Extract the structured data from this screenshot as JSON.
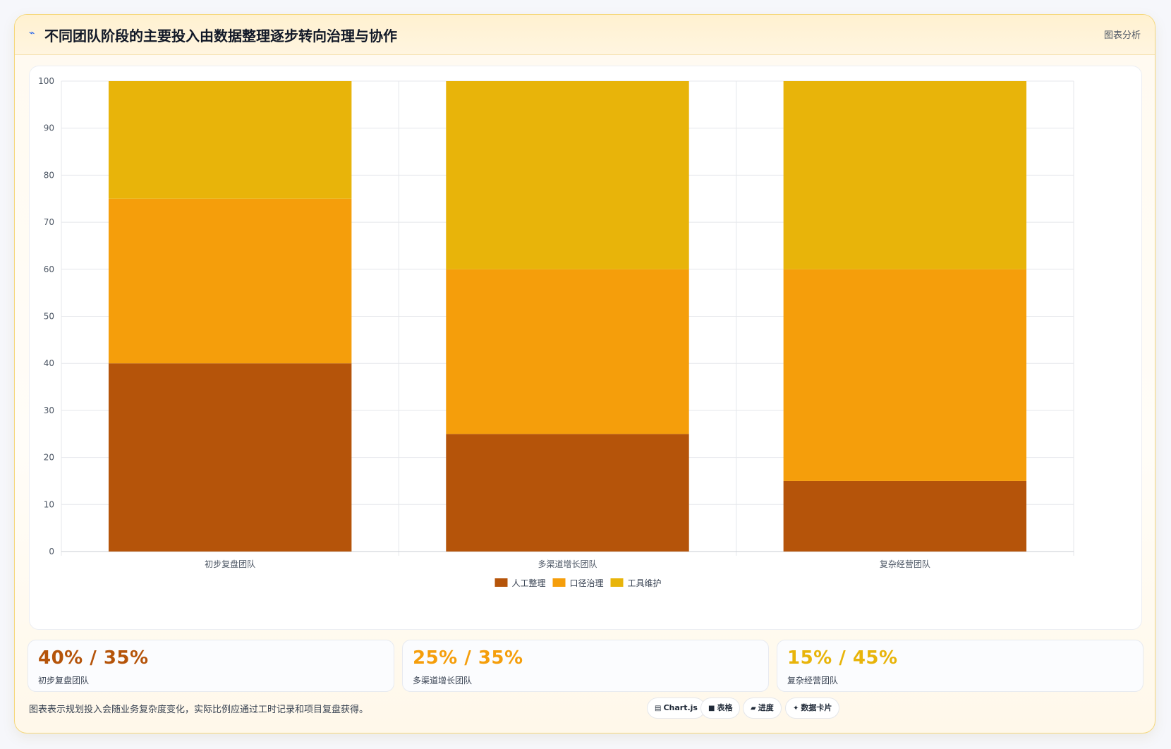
{
  "header": {
    "title_icon": "chart-line-icon",
    "title": "不同团队阶段的主要投入由数据整理逐步转向治理与协作",
    "tag": "图表分析"
  },
  "chart_data": {
    "type": "bar",
    "stacked": true,
    "categories": [
      "初步复盘团队",
      "多渠道增长团队",
      "复杂经营团队"
    ],
    "series": [
      {
        "name": "人工整理",
        "color": "#b5540a",
        "values": [
          40,
          25,
          15
        ]
      },
      {
        "name": "口径治理",
        "color": "#f59e0b",
        "values": [
          35,
          35,
          45
        ]
      },
      {
        "name": "工具维护",
        "color": "#e8b40a",
        "values": [
          25,
          40,
          40
        ]
      }
    ],
    "ylim": [
      0,
      100
    ],
    "yticks": [
      0,
      10,
      20,
      30,
      40,
      50,
      60,
      70,
      80,
      90,
      100
    ],
    "grid": true,
    "legend": "bottom"
  },
  "stats": [
    {
      "value": "40% / 35%",
      "label": "初步复盘团队",
      "color": "#b5540a"
    },
    {
      "value": "25% / 35%",
      "label": "多渠道增长团队",
      "color": "#f59e0b"
    },
    {
      "value": "15% / 45%",
      "label": "复杂经营团队",
      "color": "#e8b40a"
    }
  ],
  "footer": {
    "note": "图表表示规划投入会随业务复杂度变化，实际比例应通过工时记录和项目复盘获得。",
    "pills": [
      {
        "icon": "chart-icon",
        "glyph": "▤",
        "label": "Chart.js"
      },
      {
        "icon": "table-icon",
        "glyph": "■",
        "label": "表格"
      },
      {
        "icon": "progress-icon",
        "glyph": "▰",
        "label": "进度"
      },
      {
        "icon": "card-icon",
        "glyph": "✦",
        "label": "数据卡片"
      }
    ]
  }
}
